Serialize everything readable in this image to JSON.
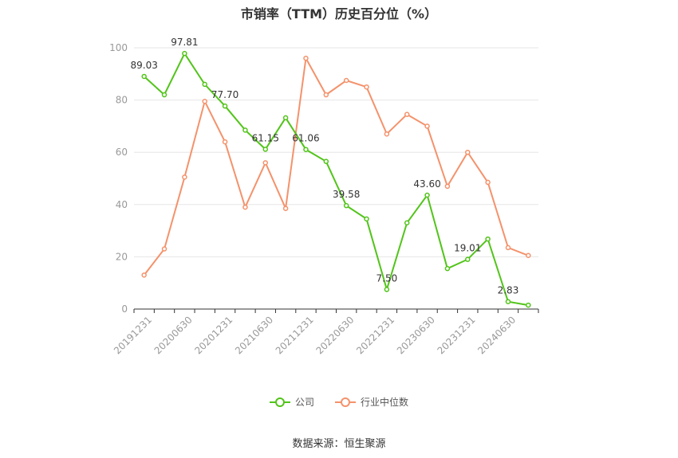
{
  "chart_data": {
    "type": "line",
    "title": "市销率（TTM）历史百分位（%）",
    "categories": [
      "20191231",
      "",
      "20200630",
      "",
      "20201231",
      "",
      "20210630",
      "",
      "20211231",
      "",
      "20220630",
      "",
      "20221231",
      "",
      "20230630",
      "",
      "20231231",
      "",
      "20240630",
      ""
    ],
    "ylim": [
      0,
      100
    ],
    "yticks": [
      0,
      20,
      40,
      60,
      80,
      100
    ],
    "grid": true,
    "legend_position": "bottom-center",
    "series": [
      {
        "name": "公司",
        "color": "#52c41a",
        "values": [
          89.03,
          82.0,
          97.81,
          86.0,
          77.7,
          68.5,
          61.15,
          73.2,
          61.06,
          56.5,
          39.58,
          34.5,
          7.5,
          33.0,
          43.6,
          15.5,
          19.01,
          26.8,
          2.83,
          1.5
        ],
        "labels": [
          "89.03",
          "",
          "97.81",
          "",
          "77.70",
          "",
          "61.15",
          "",
          "61.06",
          "",
          "39.58",
          "",
          "7.50",
          "",
          "43.60",
          "",
          "19.01",
          "",
          "2.83",
          ""
        ]
      },
      {
        "name": "行业中位数",
        "color": "#f4926b",
        "values": [
          13.0,
          23.0,
          50.5,
          79.5,
          64.0,
          39.0,
          56.0,
          38.5,
          96.0,
          82.0,
          87.5,
          85.0,
          67.0,
          74.5,
          70.0,
          47.0,
          60.0,
          48.5,
          23.5,
          20.5
        ]
      }
    ]
  },
  "source_text": "数据来源：恒生聚源"
}
